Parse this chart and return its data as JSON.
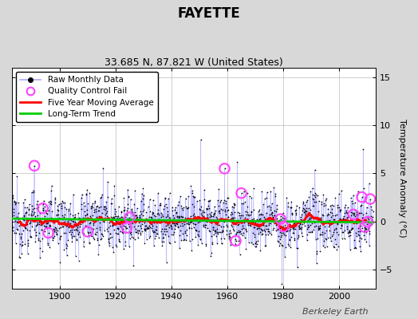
{
  "title": "FAYETTE",
  "subtitle": "33.685 N, 87.821 W (United States)",
  "ylabel": "Temperature Anomaly (°C)",
  "credit": "Berkeley Earth",
  "xlim": [
    1883,
    2013
  ],
  "ylim": [
    -7,
    16
  ],
  "yticks": [
    -5,
    0,
    5,
    10,
    15
  ],
  "xticks": [
    1900,
    1920,
    1940,
    1960,
    1980,
    2000
  ],
  "raw_color": "#4444ff",
  "raw_line_color": "#aaaaff",
  "raw_dot_color": "#000000",
  "ma_color": "#ff0000",
  "trend_color": "#00cc00",
  "qc_color": "#ff44ff",
  "background_color": "#d8d8d8",
  "plot_bg_color": "#ffffff",
  "grid_color": "#bbbbbb",
  "seed": 12345,
  "start_year": 1883,
  "end_year": 2012,
  "n_months": 1548,
  "title_fontsize": 12,
  "subtitle_fontsize": 9,
  "label_fontsize": 8,
  "legend_fontsize": 7.5,
  "tick_fontsize": 8,
  "credit_fontsize": 8
}
